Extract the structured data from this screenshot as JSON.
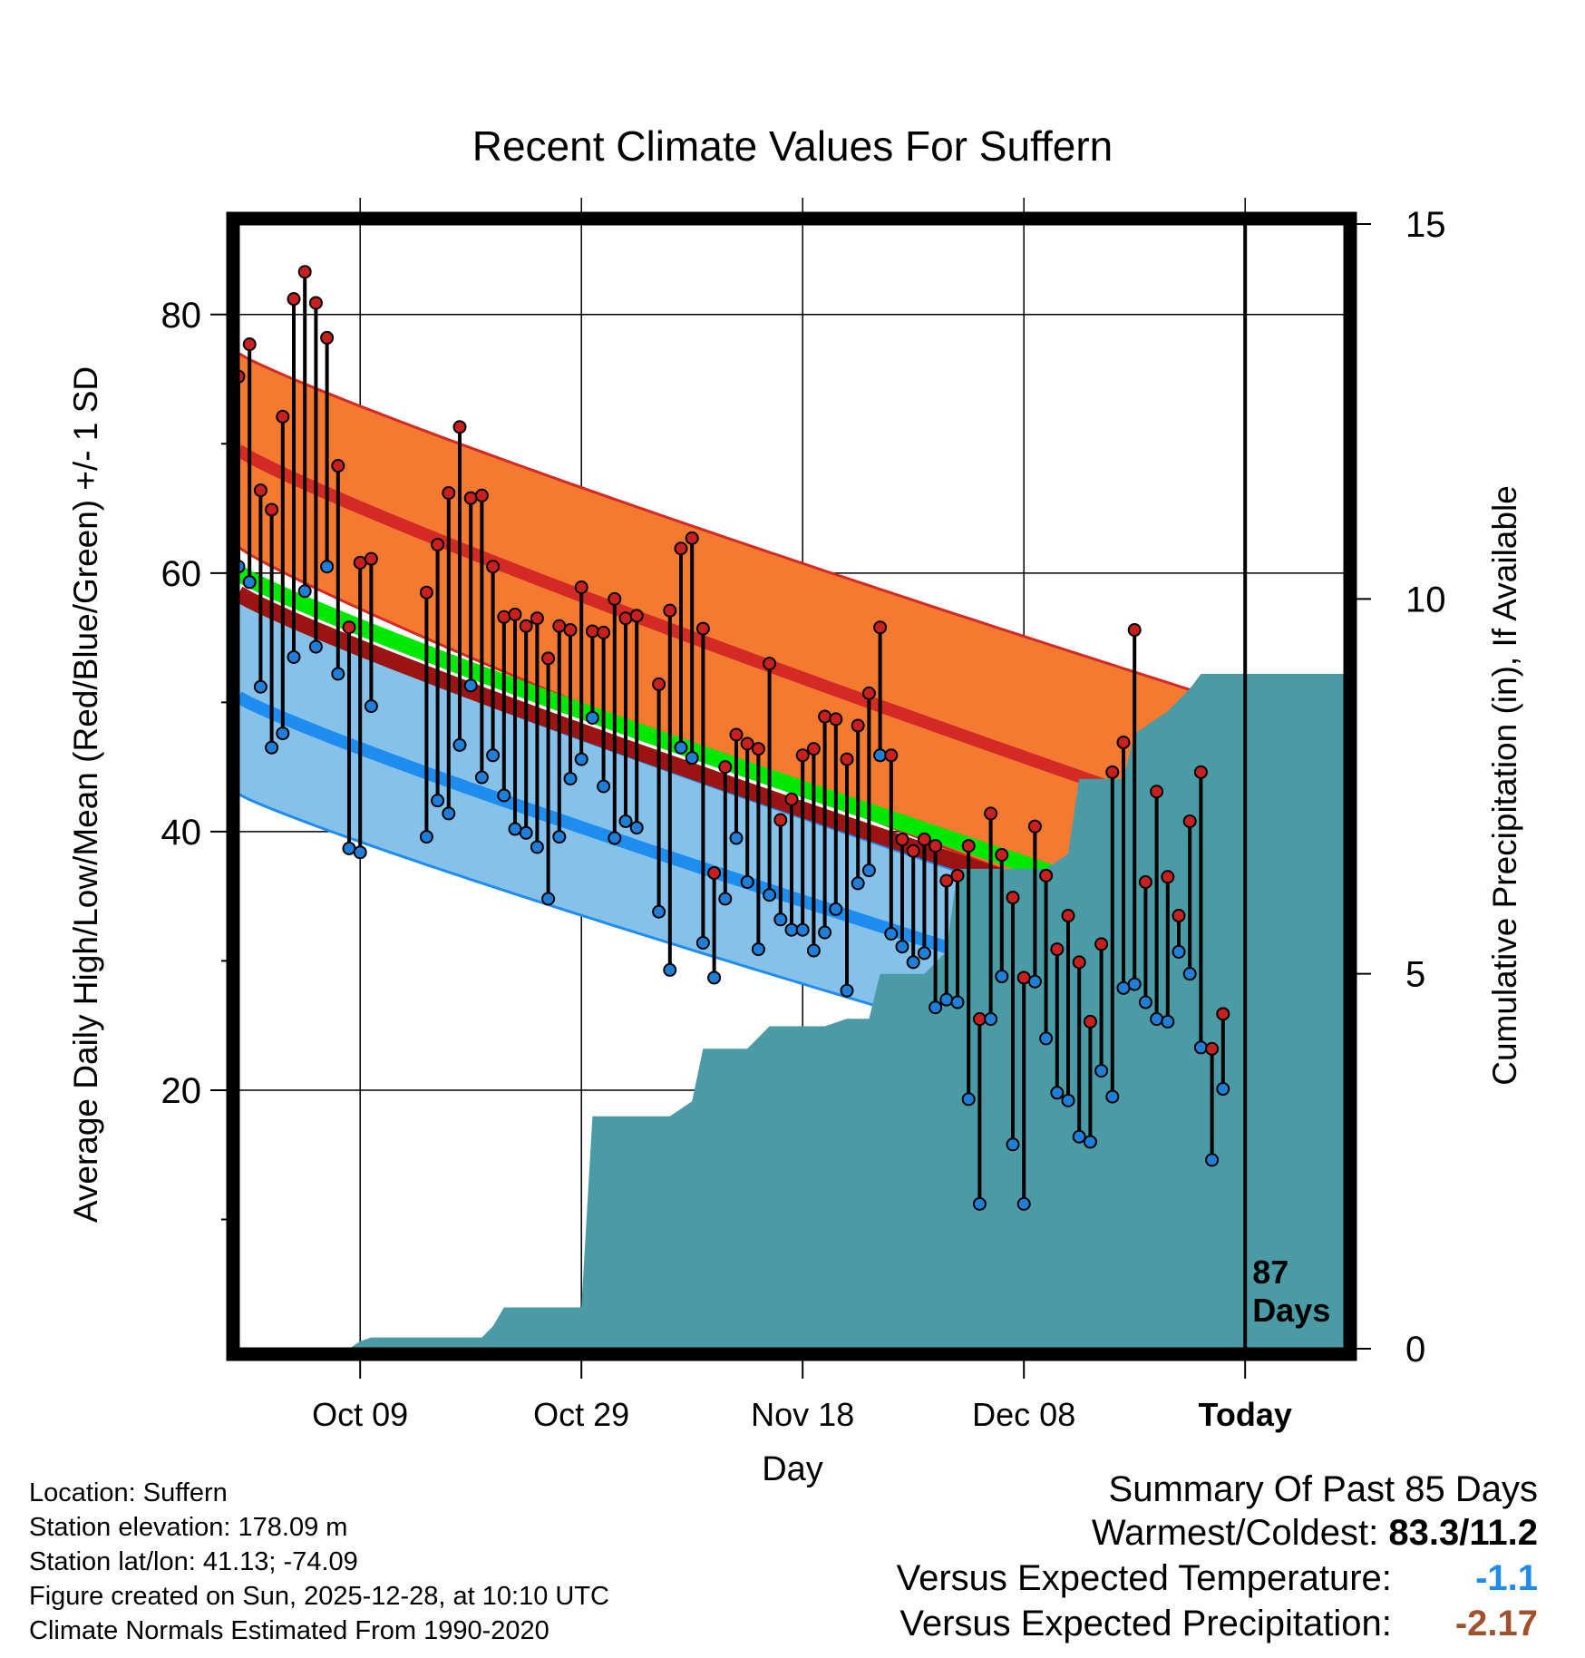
{
  "chart_data": {
    "type": "climate-range",
    "title": "Recent Climate Values For Suffern",
    "xlabel": "Day",
    "ylabel": "Average Daily High/Low/Mean (Red/Blue/Green) +/- 1 SD",
    "y2label": "Cumulative Precipitation (in), If Available",
    "ylim": [
      0,
      87
    ],
    "y_ticks": [
      20,
      40,
      60,
      80
    ],
    "y_minor_ticks": [
      10,
      30,
      50,
      70
    ],
    "y2lim": [
      0,
      15
    ],
    "y2_ticks": [
      0,
      5,
      10,
      15
    ],
    "x_range_days": [
      0,
      100
    ],
    "x_ticks": [
      {
        "day": 11,
        "label": "Oct 09"
      },
      {
        "day": 31,
        "label": "Oct 29"
      },
      {
        "day": 51,
        "label": "Nov 18"
      },
      {
        "day": 71,
        "label": "Dec 08"
      },
      {
        "day": 91,
        "label": "Today"
      }
    ],
    "today_day": 91,
    "window_label": [
      "87",
      "Days"
    ],
    "colors": {
      "high_band": "#f47a31",
      "high_mean": "#d42a26",
      "low_band": "#85c1e9",
      "low_mean": "#1f8cf0",
      "mean_line": "#00e800",
      "mean_line_dark": "#9b1313",
      "precip": "#4a9ba5",
      "high_dot": "#c8201f",
      "low_dot": "#1f7fd8",
      "temp_diff": "#1f8ce8",
      "precip_diff": "#a0522d"
    },
    "normal_high": {
      "start": 69.5,
      "end": 37.2
    },
    "normal_high_sd": {
      "start": 7.5,
      "end": 10.0
    },
    "normal_low": {
      "start": 50.4,
      "end": 21.5
    },
    "normal_low_sd": {
      "start": 7.5,
      "end": 5.5
    },
    "normal_mean": {
      "start": 60.0,
      "end": 29.4
    },
    "observed": [
      {
        "day": 0,
        "high": 75.2,
        "low": 60.5
      },
      {
        "day": 1,
        "high": 77.7,
        "low": 59.3
      },
      {
        "day": 2,
        "high": 66.4,
        "low": 51.2
      },
      {
        "day": 3,
        "high": 64.9,
        "low": 46.5
      },
      {
        "day": 4,
        "high": 72.1,
        "low": 47.6
      },
      {
        "day": 5,
        "high": 81.2,
        "low": 53.5
      },
      {
        "day": 6,
        "high": 83.3,
        "low": 58.6
      },
      {
        "day": 7,
        "high": 80.9,
        "low": 54.3
      },
      {
        "day": 8,
        "high": 78.2,
        "low": 60.5
      },
      {
        "day": 9,
        "high": 68.3,
        "low": 52.2
      },
      {
        "day": 10,
        "high": 55.8,
        "low": 38.7
      },
      {
        "day": 11,
        "high": 60.8,
        "low": 38.4
      },
      {
        "day": 12,
        "high": 61.1,
        "low": 49.7
      },
      {
        "day": 17,
        "high": 58.5,
        "low": 39.6
      },
      {
        "day": 18,
        "high": 62.2,
        "low": 42.4
      },
      {
        "day": 19,
        "high": 66.2,
        "low": 41.4
      },
      {
        "day": 20,
        "high": 71.3,
        "low": 46.7
      },
      {
        "day": 21,
        "high": 65.8,
        "low": 51.3
      },
      {
        "day": 22,
        "high": 66.0,
        "low": 44.2
      },
      {
        "day": 23,
        "high": 60.5,
        "low": 45.9
      },
      {
        "day": 24,
        "high": 56.6,
        "low": 42.8
      },
      {
        "day": 25,
        "high": 56.8,
        "low": 40.2
      },
      {
        "day": 26,
        "high": 55.9,
        "low": 39.9
      },
      {
        "day": 27,
        "high": 56.5,
        "low": 38.8
      },
      {
        "day": 28,
        "high": 53.4,
        "low": 34.8
      },
      {
        "day": 29,
        "high": 55.9,
        "low": 39.6
      },
      {
        "day": 30,
        "high": 55.6,
        "low": 44.1
      },
      {
        "day": 31,
        "high": 58.9,
        "low": 45.6
      },
      {
        "day": 32,
        "high": 55.5,
        "low": 48.8
      },
      {
        "day": 33,
        "high": 55.4,
        "low": 43.5
      },
      {
        "day": 34,
        "high": 58.0,
        "low": 39.5
      },
      {
        "day": 35,
        "high": 56.5,
        "low": 40.8
      },
      {
        "day": 36,
        "high": 56.7,
        "low": 40.3
      },
      {
        "day": 38,
        "high": 51.4,
        "low": 33.8
      },
      {
        "day": 39,
        "high": 57.1,
        "low": 29.3
      },
      {
        "day": 40,
        "high": 61.9,
        "low": 46.5
      },
      {
        "day": 41,
        "high": 62.7,
        "low": 45.7
      },
      {
        "day": 42,
        "high": 55.7,
        "low": 31.4
      },
      {
        "day": 43,
        "high": 36.8,
        "low": 28.7
      },
      {
        "day": 44,
        "high": 45.0,
        "low": 34.8
      },
      {
        "day": 45,
        "high": 47.5,
        "low": 39.5
      },
      {
        "day": 46,
        "high": 46.8,
        "low": 36.1
      },
      {
        "day": 47,
        "high": 46.4,
        "low": 30.9
      },
      {
        "day": 48,
        "high": 53.0,
        "low": 35.1
      },
      {
        "day": 49,
        "high": 40.9,
        "low": 33.2
      },
      {
        "day": 50,
        "high": 42.5,
        "low": 32.4
      },
      {
        "day": 51,
        "high": 45.9,
        "low": 32.4
      },
      {
        "day": 52,
        "high": 46.4,
        "low": 30.8
      },
      {
        "day": 53,
        "high": 48.9,
        "low": 32.2
      },
      {
        "day": 54,
        "high": 48.7,
        "low": 34.0
      },
      {
        "day": 55,
        "high": 45.6,
        "low": 27.7
      },
      {
        "day": 56,
        "high": 48.2,
        "low": 36.0
      },
      {
        "day": 57,
        "high": 50.7,
        "low": 37.0
      },
      {
        "day": 58,
        "high": 55.8,
        "low": 45.9
      },
      {
        "day": 59,
        "high": 45.9,
        "low": 32.1
      },
      {
        "day": 60,
        "high": 39.4,
        "low": 31.1
      },
      {
        "day": 61,
        "high": 38.5,
        "low": 29.9
      },
      {
        "day": 62,
        "high": 39.4,
        "low": 30.6
      },
      {
        "day": 63,
        "high": 38.9,
        "low": 26.4
      },
      {
        "day": 64,
        "high": 36.2,
        "low": 27.0
      },
      {
        "day": 65,
        "high": 36.6,
        "low": 26.8
      },
      {
        "day": 66,
        "high": 38.9,
        "low": 19.3
      },
      {
        "day": 67,
        "high": 25.5,
        "low": 11.2
      },
      {
        "day": 68,
        "high": 41.4,
        "low": 25.5
      },
      {
        "day": 69,
        "high": 38.2,
        "low": 28.8
      },
      {
        "day": 70,
        "high": 34.9,
        "low": 15.8
      },
      {
        "day": 71,
        "high": 28.7,
        "low": 11.2
      },
      {
        "day": 72,
        "high": 40.4,
        "low": 28.4
      },
      {
        "day": 73,
        "high": 36.6,
        "low": 24.0
      },
      {
        "day": 74,
        "high": 30.9,
        "low": 19.8
      },
      {
        "day": 75,
        "high": 33.5,
        "low": 19.2
      },
      {
        "day": 76,
        "high": 29.9,
        "low": 16.4
      },
      {
        "day": 77,
        "high": 25.3,
        "low": 16.0
      },
      {
        "day": 78,
        "high": 31.3,
        "low": 21.5
      },
      {
        "day": 79,
        "high": 44.6,
        "low": 19.5
      },
      {
        "day": 80,
        "high": 46.9,
        "low": 27.9
      },
      {
        "day": 81,
        "high": 55.6,
        "low": 28.2
      },
      {
        "day": 82,
        "high": 36.1,
        "low": 26.8
      },
      {
        "day": 83,
        "high": 43.1,
        "low": 25.5
      },
      {
        "day": 84,
        "high": 36.5,
        "low": 25.3
      },
      {
        "day": 85,
        "high": 33.5,
        "low": 30.7
      },
      {
        "day": 86,
        "high": 40.8,
        "low": 29.0
      },
      {
        "day": 87,
        "high": 44.6,
        "low": 23.3
      },
      {
        "day": 88,
        "high": 23.2,
        "low": 14.6
      },
      {
        "day": 89,
        "high": 25.9,
        "low": 20.1
      }
    ],
    "precip_cumulative": [
      {
        "day": 0,
        "value": 0
      },
      {
        "day": 10,
        "value": 0
      },
      {
        "day": 11,
        "value": 0.1
      },
      {
        "day": 12,
        "value": 0.15
      },
      {
        "day": 22,
        "value": 0.15
      },
      {
        "day": 23,
        "value": 0.3
      },
      {
        "day": 24,
        "value": 0.55
      },
      {
        "day": 31,
        "value": 0.55
      },
      {
        "day": 32,
        "value": 3.1
      },
      {
        "day": 39,
        "value": 3.1
      },
      {
        "day": 41,
        "value": 3.3
      },
      {
        "day": 42,
        "value": 4.0
      },
      {
        "day": 46,
        "value": 4.0
      },
      {
        "day": 48,
        "value": 4.3
      },
      {
        "day": 53,
        "value": 4.3
      },
      {
        "day": 55,
        "value": 4.4
      },
      {
        "day": 57,
        "value": 4.4
      },
      {
        "day": 58,
        "value": 5.0
      },
      {
        "day": 62,
        "value": 5.0
      },
      {
        "day": 64,
        "value": 5.3
      },
      {
        "day": 65,
        "value": 6.4
      },
      {
        "day": 73,
        "value": 6.4
      },
      {
        "day": 75,
        "value": 6.6
      },
      {
        "day": 76,
        "value": 7.6
      },
      {
        "day": 80,
        "value": 7.6
      },
      {
        "day": 81,
        "value": 8.2
      },
      {
        "day": 84,
        "value": 8.5
      },
      {
        "day": 86,
        "value": 8.8
      },
      {
        "day": 87,
        "value": 9.0
      },
      {
        "day": 100,
        "value": 9.0
      }
    ]
  },
  "footer": {
    "location": "Location: Suffern",
    "elevation": "Station elevation: 178.09 m",
    "latlon": "Station lat/lon: 41.13; -74.09",
    "created": "Figure created on Sun, 2025-12-28, at 10:10 UTC",
    "normals": "Climate Normals Estimated From 1990-2020"
  },
  "summary": {
    "title": "Summary Of Past 85 Days",
    "warm_cold_label": "Warmest/Coldest:",
    "warm_cold_value": "83.3/11.2",
    "temp_label": "Versus Expected Temperature:",
    "temp_value": "-1.1",
    "precip_label": "Versus Expected Precipitation:",
    "precip_value": "-2.17"
  }
}
